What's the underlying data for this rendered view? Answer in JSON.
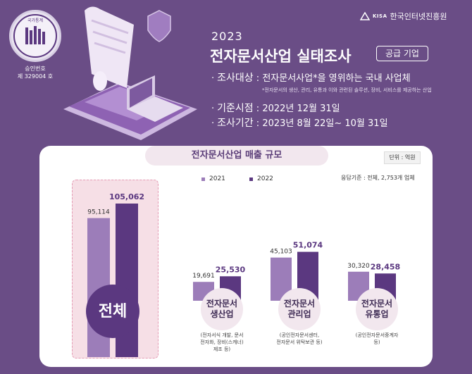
{
  "seal": {
    "badge_text": "국가통계",
    "approval_label": "승인번호",
    "approval_no": "제 329004 호"
  },
  "logo": {
    "abbr": "KISA",
    "name": "한국인터넷진흥원"
  },
  "header": {
    "year": "2023",
    "title": "전자문서산업 실태조사",
    "tag": "공급 기업",
    "rows": [
      {
        "label": "조사대상",
        "value": "전자문서사업*을 영위하는 국내 사업체"
      },
      {
        "label": "기준시점",
        "value": "2022년 12월 31일"
      },
      {
        "label": "조사기간",
        "value": "2023년 8월 22일~ 10월 31일"
      }
    ],
    "note": "*전자문서의 생산, 관리, 유통과 이와 관련된 솔루션, 장비, 서비스를 제공하는 산업"
  },
  "colors": {
    "bg": "#6a4d86",
    "series_2021": "#9c7db9",
    "series_2022": "#5b3880"
  },
  "chart_data": {
    "type": "bar",
    "title": "전자문서산업 매출 규모",
    "unit": "단위 : 억원",
    "basis": "응답기준 : 전체, 2,753개 업체",
    "categories": [
      "전체",
      "전자문서 생산업",
      "전자문서 관리업",
      "전자문서 유통업"
    ],
    "series": [
      {
        "name": "2021",
        "values": [
          95114,
          19691,
          45103,
          30320
        ],
        "labels": [
          "95,114",
          "19,691",
          "45,103",
          "30,320"
        ]
      },
      {
        "name": "2022",
        "values": [
          105062,
          25530,
          51074,
          28458
        ],
        "labels": [
          "105,062",
          "25,530",
          "51,074",
          "28,458"
        ]
      }
    ],
    "category_details": [
      {
        "line1": "전체",
        "line2": "",
        "sub": []
      },
      {
        "line1": "전자문서",
        "line2": "생산업",
        "sub": [
          "(전자서식 개발, 문서",
          "전자화, 장비(스캐너)",
          "제조 등)"
        ]
      },
      {
        "line1": "전자문서",
        "line2": "관리업",
        "sub": [
          "(공인전자문서센터,",
          "전자문서 위탁보관 등)"
        ]
      },
      {
        "line1": "전자문서",
        "line2": "유통업",
        "sub": [
          "(공인전자문서중계자",
          "등)"
        ]
      }
    ]
  }
}
